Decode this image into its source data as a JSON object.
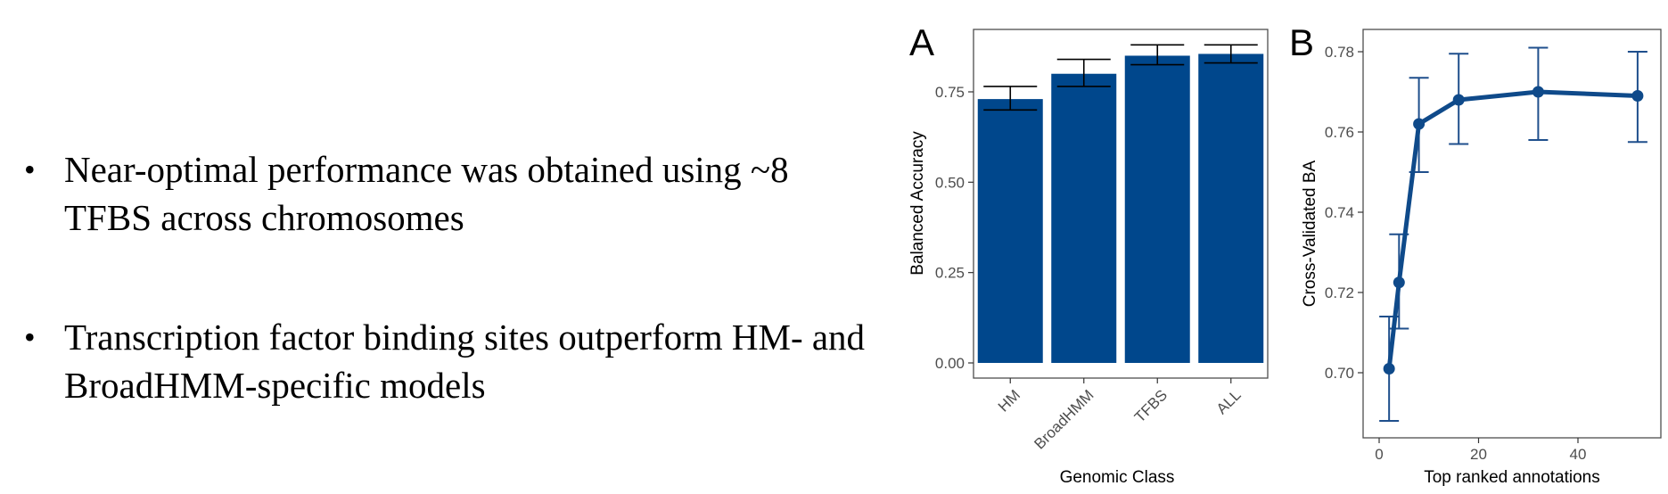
{
  "slide": {
    "bullets": [
      "Near-optimal performance was obtained using ~8 TFBS across chromosomes",
      "Transcription factor binding sites outperform HM- and BroadHMM-specific models"
    ]
  },
  "colors": {
    "bar": "#00478c",
    "line": "#0f4a8a",
    "errorbar_a": "#000000",
    "errorbar_b": "#1f4f8c"
  },
  "chart_data": [
    {
      "type": "bar",
      "panel_label": "A",
      "title": "",
      "xlabel": "Genomic Class",
      "ylabel": "Balanced Accuracy",
      "categories": [
        "HM",
        "BroadHMM",
        "TFBS",
        "ALL"
      ],
      "values": [
        0.73,
        0.8,
        0.85,
        0.855
      ],
      "error_low": [
        0.7,
        0.765,
        0.825,
        0.83
      ],
      "error_high": [
        0.765,
        0.84,
        0.88,
        0.88
      ],
      "ylim": [
        0,
        0.92
      ],
      "yticks": [
        0.0,
        0.25,
        0.5,
        0.75
      ],
      "ytick_labels": [
        "0.00",
        "0.25",
        "0.50",
        "0.75"
      ],
      "grid": false
    },
    {
      "type": "line",
      "panel_label": "B",
      "title": "",
      "xlabel": "Top ranked annotations",
      "ylabel": "Cross-Validated BA",
      "x": [
        2,
        4,
        8,
        16,
        32,
        52
      ],
      "y": [
        0.701,
        0.7225,
        0.762,
        0.768,
        0.77,
        0.769
      ],
      "error_low": [
        0.688,
        0.711,
        0.75,
        0.757,
        0.758,
        0.7575
      ],
      "error_high": [
        0.714,
        0.7345,
        0.7735,
        0.7795,
        0.781,
        0.78
      ],
      "xlim": [
        -1.5,
        54.5
      ],
      "ylim": [
        0.6835,
        0.7845
      ],
      "xticks": [
        0,
        20,
        40
      ],
      "xtick_labels": [
        "0",
        "20",
        "40"
      ],
      "yticks": [
        0.7,
        0.72,
        0.74,
        0.76,
        0.78
      ],
      "ytick_labels": [
        "0.70",
        "0.72",
        "0.74",
        "0.76",
        "0.78"
      ],
      "grid": false
    }
  ]
}
